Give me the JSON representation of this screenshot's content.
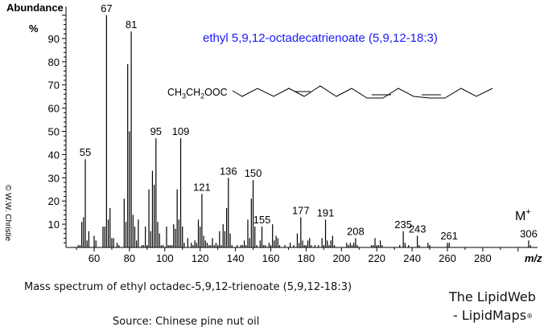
{
  "header": {
    "y_axis_title": "Abundance",
    "y_axis_unit": "%",
    "compound_title": "ethyl 5,9,12-octadecatrienoate (5,9,12-18:3)",
    "formula_prefix": {
      "p1": "CH",
      "s1": "3",
      "p2": "CH",
      "s2": "2",
      "p3": "OOC"
    },
    "copyright": "© W.W. Christie"
  },
  "footer": {
    "caption": "Mass spectrum of ethyl octadec-5,9,12-trienoate (5,9,12-18:3)",
    "source": "Source: Chinese pine nut oil",
    "brand_line1": "The LipidWeb",
    "brand_line2": "- LipidMaps",
    "brand_reg": "®"
  },
  "colors": {
    "title": "#1a1aff",
    "bars": "#000000",
    "axis": "#000000"
  },
  "chart_data": {
    "type": "bar",
    "title": "ethyl 5,9,12-octadecatrienoate (5,9,12-18:3)",
    "xlabel": "m/z",
    "ylabel": "Abundance %",
    "xlim": [
      44,
      310
    ],
    "ylim": [
      0,
      100
    ],
    "x_ticks": [
      60,
      80,
      100,
      120,
      140,
      160,
      180,
      200,
      220,
      240,
      260,
      280
    ],
    "y_ticks": [
      10,
      20,
      30,
      40,
      50,
      60,
      70,
      80,
      90
    ],
    "grid": false,
    "molecular_ion_label": "M+",
    "labeled_peaks": [
      55,
      67,
      81,
      95,
      109,
      121,
      136,
      150,
      155,
      177,
      191,
      208,
      235,
      243,
      261,
      306
    ],
    "peaks": [
      [
        51,
        1
      ],
      [
        52,
        1
      ],
      [
        53,
        11
      ],
      [
        54,
        13
      ],
      [
        55,
        38
      ],
      [
        56,
        3
      ],
      [
        57,
        7
      ],
      [
        60,
        5
      ],
      [
        61,
        3
      ],
      [
        65,
        9
      ],
      [
        66,
        9
      ],
      [
        67,
        100
      ],
      [
        68,
        12
      ],
      [
        69,
        17
      ],
      [
        70,
        4
      ],
      [
        71,
        4
      ],
      [
        73,
        2
      ],
      [
        74,
        1
      ],
      [
        77,
        21
      ],
      [
        78,
        11
      ],
      [
        79,
        79
      ],
      [
        80,
        50
      ],
      [
        81,
        93
      ],
      [
        82,
        14
      ],
      [
        83,
        9
      ],
      [
        84,
        3
      ],
      [
        85,
        12
      ],
      [
        87,
        1
      ],
      [
        88,
        1
      ],
      [
        89,
        9
      ],
      [
        90,
        1
      ],
      [
        91,
        25
      ],
      [
        92,
        7
      ],
      [
        93,
        33
      ],
      [
        94,
        27
      ],
      [
        95,
        47
      ],
      [
        96,
        11
      ],
      [
        97,
        6
      ],
      [
        98,
        1
      ],
      [
        99,
        1
      ],
      [
        101,
        9
      ],
      [
        102,
        1
      ],
      [
        103,
        1
      ],
      [
        104,
        1
      ],
      [
        105,
        10
      ],
      [
        106,
        8
      ],
      [
        107,
        25
      ],
      [
        108,
        12
      ],
      [
        109,
        47
      ],
      [
        110,
        9
      ],
      [
        111,
        2
      ],
      [
        113,
        4
      ],
      [
        115,
        2
      ],
      [
        116,
        1
      ],
      [
        117,
        3
      ],
      [
        118,
        2
      ],
      [
        119,
        12
      ],
      [
        120,
        9
      ],
      [
        121,
        23
      ],
      [
        122,
        5
      ],
      [
        123,
        3
      ],
      [
        124,
        2
      ],
      [
        125,
        1
      ],
      [
        126,
        1
      ],
      [
        127,
        4
      ],
      [
        128,
        1
      ],
      [
        129,
        2
      ],
      [
        130,
        1
      ],
      [
        131,
        7
      ],
      [
        132,
        1
      ],
      [
        133,
        10
      ],
      [
        134,
        7
      ],
      [
        135,
        17
      ],
      [
        136,
        30
      ],
      [
        137,
        6
      ],
      [
        138,
        1
      ],
      [
        141,
        1
      ],
      [
        143,
        1
      ],
      [
        144,
        1
      ],
      [
        145,
        3
      ],
      [
        146,
        1
      ],
      [
        147,
        12
      ],
      [
        148,
        4
      ],
      [
        149,
        21
      ],
      [
        150,
        29
      ],
      [
        151,
        9
      ],
      [
        152,
        1
      ],
      [
        154,
        3
      ],
      [
        155,
        9
      ],
      [
        156,
        1
      ],
      [
        157,
        1
      ],
      [
        159,
        2
      ],
      [
        160,
        1
      ],
      [
        161,
        10
      ],
      [
        162,
        3
      ],
      [
        163,
        5
      ],
      [
        164,
        4
      ],
      [
        165,
        1
      ],
      [
        168,
        1
      ],
      [
        171,
        2
      ],
      [
        173,
        1
      ],
      [
        175,
        6
      ],
      [
        176,
        2
      ],
      [
        177,
        13
      ],
      [
        178,
        3
      ],
      [
        179,
        1
      ],
      [
        180,
        1
      ],
      [
        181,
        3
      ],
      [
        182,
        4
      ],
      [
        183,
        1
      ],
      [
        185,
        1
      ],
      [
        187,
        1
      ],
      [
        189,
        4
      ],
      [
        190,
        1
      ],
      [
        191,
        12
      ],
      [
        192,
        3
      ],
      [
        193,
        1
      ],
      [
        194,
        3
      ],
      [
        195,
        5
      ],
      [
        196,
        1
      ],
      [
        203,
        2
      ],
      [
        204,
        1
      ],
      [
        205,
        2
      ],
      [
        206,
        1
      ],
      [
        207,
        2
      ],
      [
        208,
        4
      ],
      [
        209,
        1
      ],
      [
        217,
        1
      ],
      [
        218,
        1
      ],
      [
        219,
        4
      ],
      [
        220,
        1
      ],
      [
        221,
        1
      ],
      [
        222,
        3
      ],
      [
        223,
        1
      ],
      [
        233,
        1
      ],
      [
        235,
        7
      ],
      [
        236,
        2
      ],
      [
        238,
        1
      ],
      [
        243,
        5
      ],
      [
        244,
        1
      ],
      [
        249,
        2
      ],
      [
        250,
        1
      ],
      [
        260,
        2
      ],
      [
        261,
        2
      ],
      [
        306,
        3
      ],
      [
        307,
        1
      ]
    ]
  }
}
